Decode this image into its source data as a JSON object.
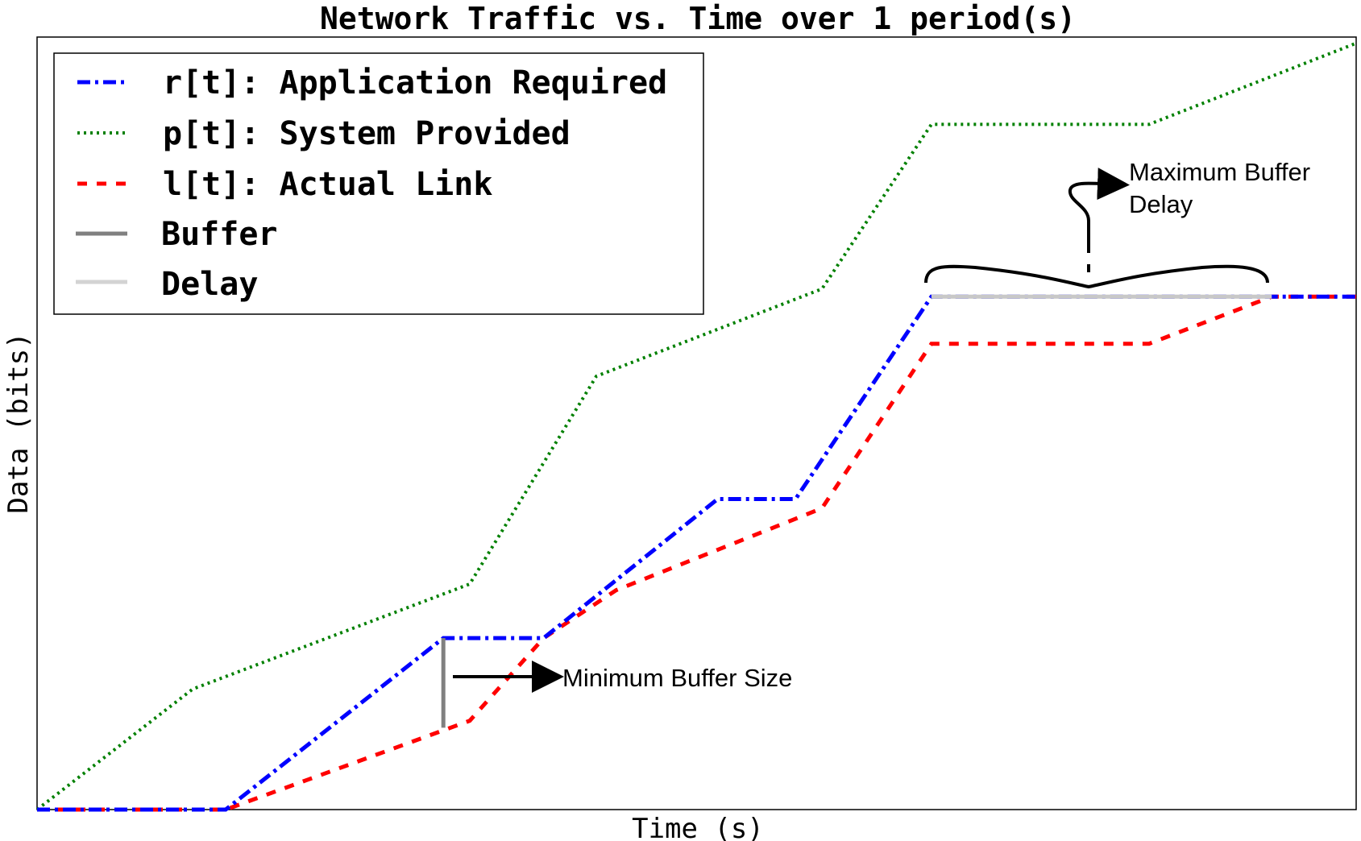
{
  "chart_data": {
    "type": "line",
    "title": "Network Traffic vs. Time over 1 period(s)",
    "xlabel": "Time (s)",
    "ylabel": "Data (bits)",
    "xlim": [
      0,
      100
    ],
    "ylim": [
      0,
      100
    ],
    "grid": false,
    "show_ticks": false,
    "legend_position": "upper-left",
    "series": [
      {
        "name": "r[t]: Application Required",
        "style": "dashdot",
        "color": "#0000ff",
        "x": [
          0,
          14.3,
          30.8,
          38.4,
          51.6,
          57.5,
          67.8,
          100
        ],
        "y": [
          0,
          0,
          22.2,
          22.2,
          40.2,
          40.2,
          66.4,
          66.4
        ]
      },
      {
        "name": "p[t]: System Provided",
        "style": "dotted",
        "color": "#008000",
        "x": [
          0,
          11.8,
          32.8,
          42.4,
          59.5,
          67.8,
          84.3,
          100
        ],
        "y": [
          0,
          15.6,
          29.2,
          56.1,
          67.4,
          88.7,
          88.7,
          99.2
        ]
      },
      {
        "name": "l[t]: Actual Link",
        "style": "dashed",
        "color": "#ff0000",
        "x": [
          0,
          14.3,
          32.8,
          38.4,
          43.9,
          59.5,
          67.8,
          84.3,
          93.6,
          100
        ],
        "y": [
          0,
          0,
          11.5,
          22.2,
          28.4,
          39.0,
          60.3,
          60.3,
          66.4,
          66.4
        ]
      }
    ],
    "legend_extra": [
      {
        "name": "Buffer",
        "color": "#808080",
        "style": "solid"
      },
      {
        "name": "Delay",
        "color": "#d3d3d3",
        "style": "solid"
      }
    ],
    "buffer_segment": {
      "x": 30.8,
      "y": [
        10.6,
        22.2
      ]
    },
    "delay_segment": {
      "x": [
        67.8,
        93.6
      ],
      "y": 66.4
    },
    "annotations": [
      {
        "text_lines": [
          "Minimum Buffer Size"
        ]
      },
      {
        "text_lines": [
          "Maximum Buffer",
          "Delay"
        ]
      }
    ]
  }
}
